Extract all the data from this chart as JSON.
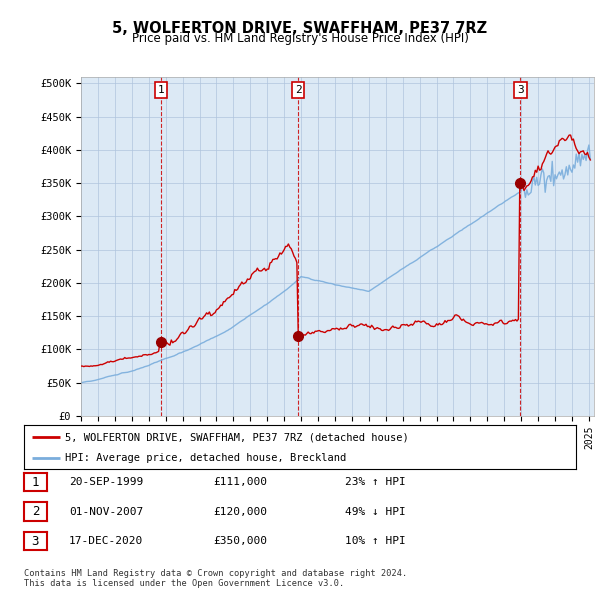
{
  "title": "5, WOLFERTON DRIVE, SWAFFHAM, PE37 7RZ",
  "subtitle": "Price paid vs. HM Land Registry's House Price Index (HPI)",
  "background_color": "#ffffff",
  "chart_bg_color": "#dce9f5",
  "grid_color": "#b0c4de",
  "sale_dates_float": [
    1999.7083,
    2007.8333,
    2020.9583
  ],
  "sale_prices": [
    111000,
    120000,
    350000
  ],
  "sale_labels": [
    "1",
    "2",
    "3"
  ],
  "legend_entries": [
    "5, WOLFERTON DRIVE, SWAFFHAM, PE37 7RZ (detached house)",
    "HPI: Average price, detached house, Breckland"
  ],
  "table_rows": [
    [
      "1",
      "20-SEP-1999",
      "£111,000",
      "23% ↑ HPI"
    ],
    [
      "2",
      "01-NOV-2007",
      "£120,000",
      "49% ↓ HPI"
    ],
    [
      "3",
      "17-DEC-2020",
      "£350,000",
      "10% ↑ HPI"
    ]
  ],
  "footer": "Contains HM Land Registry data © Crown copyright and database right 2024.\nThis data is licensed under the Open Government Licence v3.0.",
  "y_ticks": [
    0,
    50000,
    100000,
    150000,
    200000,
    250000,
    300000,
    350000,
    400000,
    450000,
    500000
  ],
  "y_tick_labels": [
    "£0",
    "£50K",
    "£100K",
    "£150K",
    "£200K",
    "£250K",
    "£300K",
    "£350K",
    "£400K",
    "£450K",
    "£500K"
  ],
  "red_line_color": "#cc0000",
  "blue_line_color": "#7aaddc",
  "sale_marker_color": "#990000",
  "vline_color": "#cc0000",
  "label_box_color": "#cc0000"
}
